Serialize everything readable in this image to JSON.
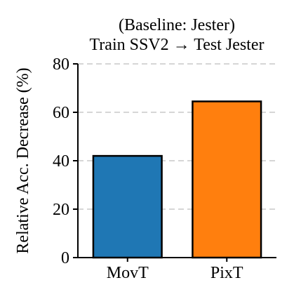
{
  "chart_data": {
    "type": "bar",
    "title_lines": [
      "(Baseline: Jester)",
      "Train SSV2 → Test Jester"
    ],
    "xlabel": "",
    "ylabel": "Relative Acc. Decrease (%)",
    "categories": [
      "MovT",
      "PixT"
    ],
    "values": [
      42,
      64.5
    ],
    "colors": [
      "#1f77b4",
      "#ff7f0e"
    ],
    "ylim": [
      0,
      80
    ],
    "yticks": [
      0,
      20,
      40,
      60,
      80
    ],
    "ytick_labels": [
      "0",
      "20",
      "40",
      "60",
      "80"
    ],
    "grid": "y-dashed"
  }
}
